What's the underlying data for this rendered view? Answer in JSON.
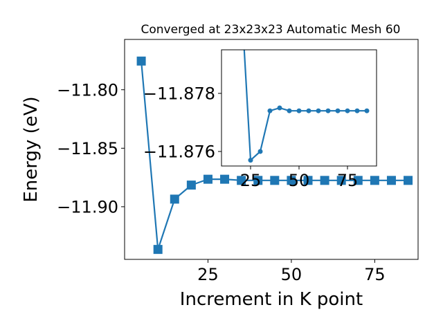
{
  "chart_data": [
    {
      "type": "line",
      "title": "Converged at 23x23x23 Automatic Mesh 60",
      "xlabel": "Increment in K point",
      "ylabel": "Energy (eV)",
      "xlim": [
        0,
        88
      ],
      "ylim": [
        -11.945,
        -11.757
      ],
      "xticks": [
        25,
        50,
        75
      ],
      "xtick_labels": [
        "25",
        "50",
        "75"
      ],
      "yticks": [
        -11.8,
        -11.85,
        -11.9
      ],
      "ytick_labels": [
        "−11.80",
        "−11.85",
        "−11.90"
      ],
      "marker": "square",
      "color": "#1f77b4",
      "grid": false,
      "series": [
        {
          "x": [
            5,
            10,
            15,
            20,
            25,
            30,
            35,
            40,
            45,
            50,
            55,
            60,
            65,
            70,
            75,
            80,
            85
          ],
          "y": [
            -11.7755,
            -11.9365,
            -11.8935,
            -11.8815,
            -11.8765,
            -11.8765,
            -11.8775,
            -11.8775,
            -11.8775,
            -11.8775,
            -11.8775,
            -11.8775,
            -11.8775,
            -11.8775,
            -11.8775,
            -11.8775,
            -11.8775
          ]
        }
      ]
    },
    {
      "type": "line",
      "title": "",
      "xlabel": "",
      "ylabel": "",
      "xlim": [
        10,
        90
      ],
      "ylim": [
        -11.8755,
        -11.8795
      ],
      "xticks": [
        25,
        50,
        75
      ],
      "xtick_labels": [
        "25",
        "50",
        "75"
      ],
      "yticks": [
        -11.878,
        -11.876
      ],
      "ytick_labels": [
        "−11.878",
        "−11.876"
      ],
      "marker": "circle",
      "color": "#1f77b4",
      "grid": false,
      "series": [
        {
          "x": [
            25,
            30,
            35,
            40,
            45,
            50,
            55,
            60,
            65,
            70,
            75,
            80,
            85
          ],
          "y": [
            -11.8757,
            -11.876,
            -11.8774,
            -11.8775,
            -11.8774,
            -11.8774,
            -11.8774,
            -11.8774,
            -11.8774,
            -11.8774,
            -11.8774,
            -11.8774,
            -11.8774
          ],
          "enters_from": {
            "x": 20,
            "y": -11.8815
          }
        }
      ]
    }
  ]
}
